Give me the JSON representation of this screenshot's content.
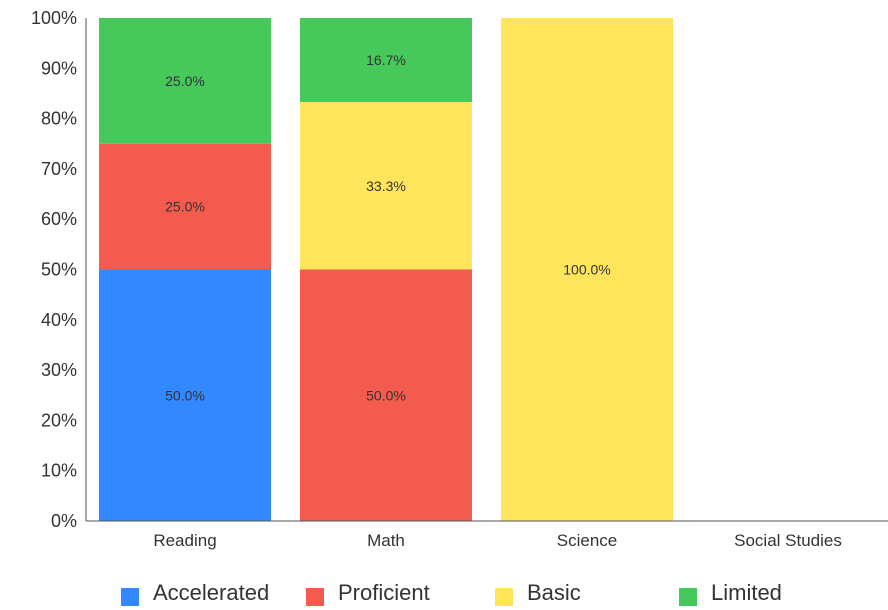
{
  "chart_data": {
    "type": "bar",
    "stacked": true,
    "categories": [
      "Reading",
      "Math",
      "Science",
      "Social Studies"
    ],
    "series": [
      {
        "name": "Accelerated",
        "color": "#3388ff",
        "values": [
          50.0,
          0,
          0,
          0
        ]
      },
      {
        "name": "Proficient",
        "color": "#f45b4f",
        "values": [
          25.0,
          50.0,
          0,
          0
        ]
      },
      {
        "name": "Basic",
        "color": "#ffe55c",
        "values": [
          0,
          33.3,
          100.0,
          0
        ]
      },
      {
        "name": "Limited",
        "color": "#46c85a",
        "values": [
          25.0,
          16.7,
          0,
          0
        ]
      }
    ],
    "data_labels": [
      [
        "50.0%",
        "25.0%",
        "",
        "25.0%"
      ],
      [
        "",
        "50.0%",
        "33.3%",
        "16.7%"
      ],
      [
        "",
        "",
        "100.0%",
        ""
      ],
      [
        "",
        "",
        "",
        ""
      ]
    ],
    "ylim": [
      0,
      100
    ],
    "yticks": [
      "0%",
      "10%",
      "20%",
      "30%",
      "40%",
      "50%",
      "60%",
      "70%",
      "80%",
      "90%",
      "100%"
    ],
    "grid": false,
    "legend_position": "bottom",
    "title": "",
    "xlabel": "",
    "ylabel": ""
  }
}
